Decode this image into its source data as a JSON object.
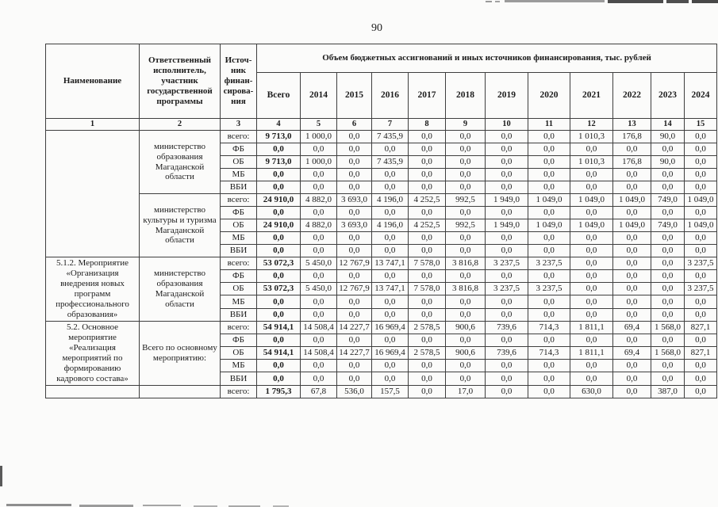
{
  "page": {
    "number": "90"
  },
  "table": {
    "col_name": "Наименование",
    "col_executor": "Ответственный исполнитель, участник государственной программы",
    "col_source": "Источ-\nник\nфинан-\nсирова-\nния",
    "unit_header": "Объем бюджетных ассигнований и иных источников финансирования, тыс. рублей",
    "col_total": "Всего",
    "years": [
      "2014",
      "2015",
      "2016",
      "2017",
      "2018",
      "2019",
      "2020",
      "2021",
      "2022",
      "2023",
      "2024"
    ],
    "column_numbers": [
      "1",
      "2",
      "3",
      "4",
      "5",
      "6",
      "7",
      "8",
      "9",
      "10",
      "11",
      "12",
      "13",
      "14",
      "15"
    ],
    "groups": [
      {
        "name": "",
        "name_rows": 10,
        "executor": "министерство образования Магаданской области",
        "rows": [
          {
            "label": "всего:",
            "values": [
              "9 713,0",
              "1 000,0",
              "0,0",
              "7 435,9",
              "0,0",
              "0,0",
              "0,0",
              "0,0",
              "1 010,3",
              "176,8",
              "90,0",
              "0,0"
            ]
          },
          {
            "label": "ФБ",
            "values": [
              "0,0",
              "0,0",
              "0,0",
              "0,0",
              "0,0",
              "0,0",
              "0,0",
              "0,0",
              "0,0",
              "0,0",
              "0,0",
              "0,0"
            ]
          },
          {
            "label": "ОБ",
            "values": [
              "9 713,0",
              "1 000,0",
              "0,0",
              "7 435,9",
              "0,0",
              "0,0",
              "0,0",
              "0,0",
              "1 010,3",
              "176,8",
              "90,0",
              "0,0"
            ]
          },
          {
            "label": "МБ",
            "values": [
              "0,0",
              "0,0",
              "0,0",
              "0,0",
              "0,0",
              "0,0",
              "0,0",
              "0,0",
              "0,0",
              "0,0",
              "0,0",
              "0,0"
            ]
          },
          {
            "label": "ВБИ",
            "values": [
              "0,0",
              "0,0",
              "0,0",
              "0,0",
              "0,0",
              "0,0",
              "0,0",
              "0,0",
              "0,0",
              "0,0",
              "0,0",
              "0,0"
            ]
          }
        ]
      },
      {
        "name": null,
        "name_rows": 0,
        "executor": "министерство культуры и туризма Магаданской области",
        "rows": [
          {
            "label": "всего:",
            "values": [
              "24 910,0",
              "4 882,0",
              "3 693,0",
              "4 196,0",
              "4 252,5",
              "992,5",
              "1 949,0",
              "1 049,0",
              "1 049,0",
              "1 049,0",
              "749,0",
              "1 049,0"
            ]
          },
          {
            "label": "ФБ",
            "values": [
              "0,0",
              "0,0",
              "0,0",
              "0,0",
              "0,0",
              "0,0",
              "0,0",
              "0,0",
              "0,0",
              "0,0",
              "0,0",
              "0,0"
            ]
          },
          {
            "label": "ОБ",
            "values": [
              "24 910,0",
              "4 882,0",
              "3 693,0",
              "4 196,0",
              "4 252,5",
              "992,5",
              "1 949,0",
              "1 049,0",
              "1 049,0",
              "1 049,0",
              "749,0",
              "1 049,0"
            ]
          },
          {
            "label": "МБ",
            "values": [
              "0,0",
              "0,0",
              "0,0",
              "0,0",
              "0,0",
              "0,0",
              "0,0",
              "0,0",
              "0,0",
              "0,0",
              "0,0",
              "0,0"
            ]
          },
          {
            "label": "ВБИ",
            "values": [
              "0,0",
              "0,0",
              "0,0",
              "0,0",
              "0,0",
              "0,0",
              "0,0",
              "0,0",
              "0,0",
              "0,0",
              "0,0",
              "0,0"
            ]
          }
        ]
      },
      {
        "name": "5.1.2. Мероприятие «Организация внедрения новых программ профессионального образования»",
        "name_rows": 5,
        "executor": "министерство образования Магаданской области",
        "rows": [
          {
            "label": "всего:",
            "values": [
              "53 072,3",
              "5 450,0",
              "12 767,9",
              "13 747,1",
              "7 578,0",
              "3 816,8",
              "3 237,5",
              "3 237,5",
              "0,0",
              "0,0",
              "0,0",
              "3 237,5"
            ]
          },
          {
            "label": "ФБ",
            "values": [
              "0,0",
              "0,0",
              "0,0",
              "0,0",
              "0,0",
              "0,0",
              "0,0",
              "0,0",
              "0,0",
              "0,0",
              "0,0",
              "0,0"
            ]
          },
          {
            "label": "ОБ",
            "values": [
              "53 072,3",
              "5 450,0",
              "12 767,9",
              "13 747,1",
              "7 578,0",
              "3 816,8",
              "3 237,5",
              "3 237,5",
              "0,0",
              "0,0",
              "0,0",
              "3 237,5"
            ]
          },
          {
            "label": "МБ",
            "values": [
              "0,0",
              "0,0",
              "0,0",
              "0,0",
              "0,0",
              "0,0",
              "0,0",
              "0,0",
              "0,0",
              "0,0",
              "0,0",
              "0,0"
            ]
          },
          {
            "label": "ВБИ",
            "values": [
              "0,0",
              "0,0",
              "0,0",
              "0,0",
              "0,0",
              "0,0",
              "0,0",
              "0,0",
              "0,0",
              "0,0",
              "0,0",
              "0,0"
            ]
          }
        ]
      },
      {
        "name": "5.2. Основное мероприятие «Реализация мероприятий по формированию кадрового состава»",
        "name_rows": 5,
        "executor": "Всего по основному мероприятию:",
        "rows": [
          {
            "label": "всего:",
            "values": [
              "54 914,1",
              "14 508,4",
              "14 227,7",
              "16 969,4",
              "2 578,5",
              "900,6",
              "739,6",
              "714,3",
              "1 811,1",
              "69,4",
              "1 568,0",
              "827,1"
            ]
          },
          {
            "label": "ФБ",
            "values": [
              "0,0",
              "0,0",
              "0,0",
              "0,0",
              "0,0",
              "0,0",
              "0,0",
              "0,0",
              "0,0",
              "0,0",
              "0,0",
              "0,0"
            ]
          },
          {
            "label": "ОБ",
            "values": [
              "54 914,1",
              "14 508,4",
              "14 227,7",
              "16 969,4",
              "2 578,5",
              "900,6",
              "739,6",
              "714,3",
              "1 811,1",
              "69,4",
              "1 568,0",
              "827,1"
            ]
          },
          {
            "label": "МБ",
            "values": [
              "0,0",
              "0,0",
              "0,0",
              "0,0",
              "0,0",
              "0,0",
              "0,0",
              "0,0",
              "0,0",
              "0,0",
              "0,0",
              "0,0"
            ]
          },
          {
            "label": "ВБИ",
            "values": [
              "0,0",
              "0,0",
              "0,0",
              "0,0",
              "0,0",
              "0,0",
              "0,0",
              "0,0",
              "0,0",
              "0,0",
              "0,0",
              "0,0"
            ]
          }
        ]
      },
      {
        "name": "",
        "name_rows": 1,
        "executor": "",
        "rows": [
          {
            "label": "всего:",
            "values": [
              "1 795,3",
              "67,8",
              "536,0",
              "157,5",
              "0,0",
              "17,0",
              "0,0",
              "0,0",
              "630,0",
              "0,0",
              "387,0",
              "0,0"
            ]
          }
        ]
      }
    ]
  }
}
